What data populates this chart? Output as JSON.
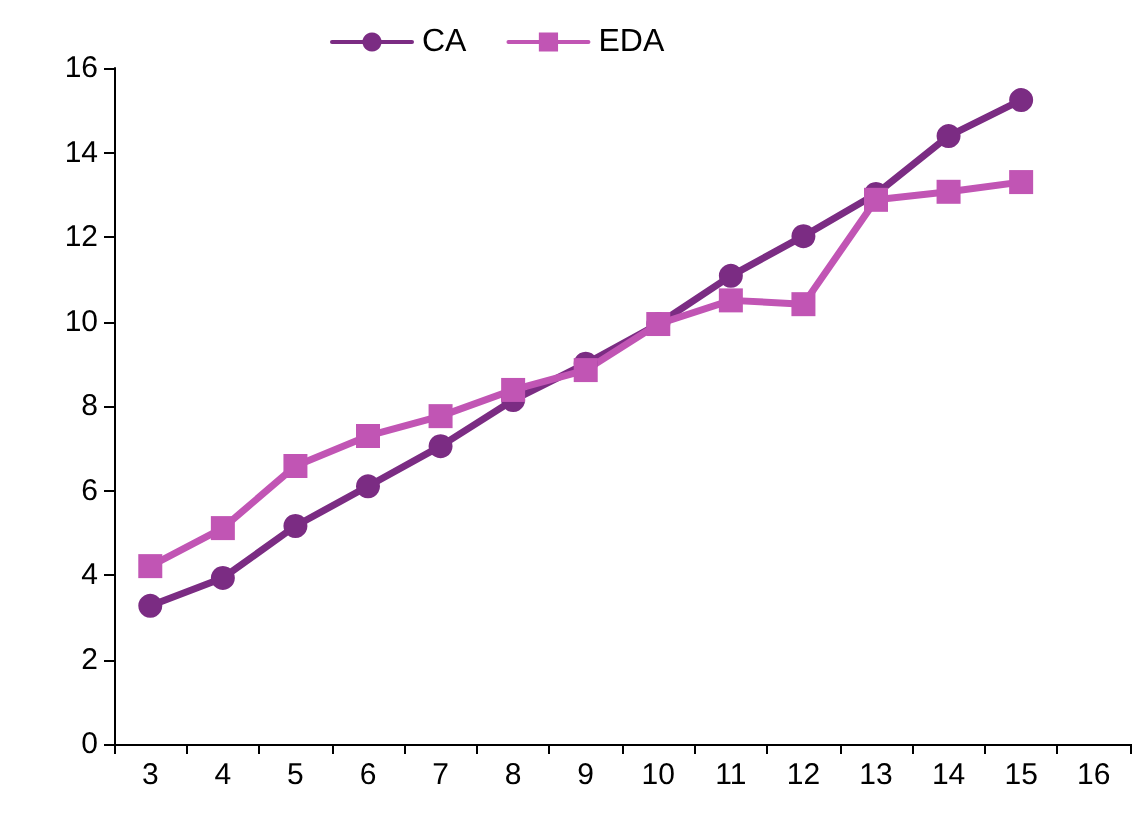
{
  "chart_data": {
    "type": "line",
    "categories": [
      "3",
      "4",
      "5",
      "6",
      "7",
      "8",
      "9",
      "10",
      "11",
      "12",
      "13",
      "14",
      "15",
      "16"
    ],
    "series": [
      {
        "name": "CA",
        "color": "#7b2c83",
        "marker": "circle",
        "values": [
          3.27,
          3.93,
          5.16,
          6.1,
          7.05,
          8.14,
          9.0,
          9.94,
          11.08,
          12.02,
          13.02,
          14.39,
          15.24,
          null
        ]
      },
      {
        "name": "EDA",
        "color": "#c155b4",
        "marker": "square",
        "values": [
          4.21,
          5.11,
          6.58,
          7.29,
          7.76,
          8.38,
          8.85,
          9.94,
          10.5,
          10.41,
          12.88,
          13.07,
          13.3,
          null
        ]
      }
    ],
    "ylim": [
      0,
      16
    ],
    "yticks": [
      0,
      2,
      4,
      6,
      8,
      10,
      12,
      14,
      16
    ],
    "grid": false,
    "legend": "top",
    "line_style": "solid"
  }
}
